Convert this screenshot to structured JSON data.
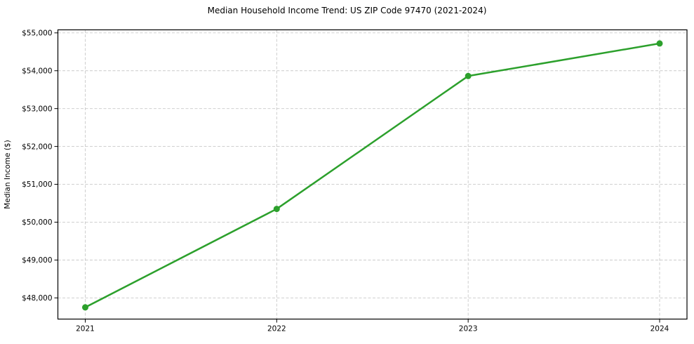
{
  "chart_data": {
    "type": "line",
    "title": "Median Household Income Trend: US ZIP Code 97470 (2021-2024)",
    "xlabel": "",
    "ylabel": "Median Income ($)",
    "categories": [
      "2021",
      "2022",
      "2023",
      "2024"
    ],
    "series": [
      {
        "values": [
          47750,
          50350,
          53860,
          54720
        ]
      }
    ],
    "ylim": [
      47440,
      55080
    ],
    "yticks": [
      48000,
      49000,
      50000,
      51000,
      52000,
      53000,
      54000,
      55000
    ],
    "ytick_labels": [
      "$48,000",
      "$49,000",
      "$50,000",
      "$51,000",
      "$52,000",
      "$53,000",
      "$54,000",
      "$55,000"
    ],
    "grid": true,
    "grid_linestyle": "dashed",
    "legend_position": "none",
    "colors": {
      "line": "#2ca02c",
      "marker": "#2ca02c",
      "grid": "#c9c9c9",
      "axis": "#000000",
      "text": "#000000",
      "background": "#ffffff"
    }
  }
}
